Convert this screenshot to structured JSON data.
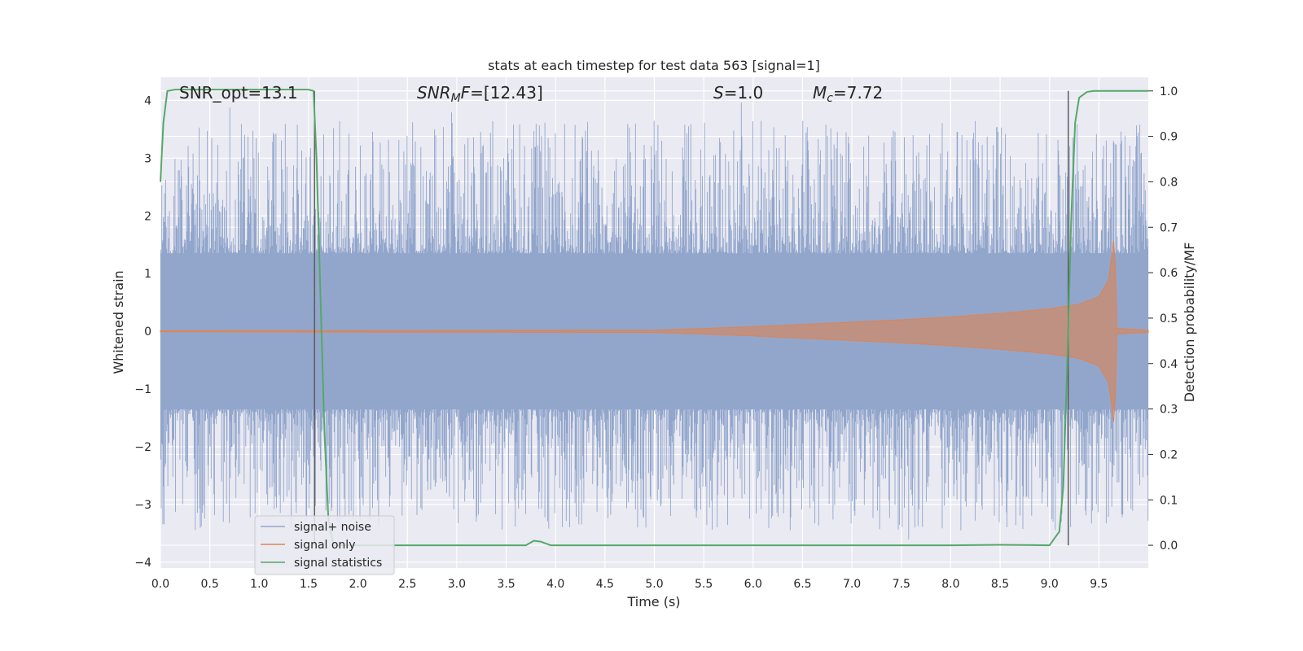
{
  "chart_data": {
    "type": "line",
    "title": "stats at each timestep for test data 563 [signal=1]",
    "xlabel": "Time (s)",
    "ylabel": "Whitened strain",
    "ylabel_right": "Detection probability/MF",
    "xlim": [
      0.0,
      10.0
    ],
    "ylim": [
      -4.1,
      4.4
    ],
    "ylim_right": [
      -0.05,
      1.03
    ],
    "x_ticks": [
      "0.0",
      "0.5",
      "1.0",
      "1.5",
      "2.0",
      "2.5",
      "3.0",
      "3.5",
      "4.0",
      "4.5",
      "5.0",
      "5.5",
      "6.0",
      "6.5",
      "7.0",
      "7.5",
      "8.0",
      "8.5",
      "9.0",
      "9.5"
    ],
    "y_ticks": [
      "−4",
      "−3",
      "−2",
      "−1",
      "0",
      "1",
      "2",
      "3",
      "4"
    ],
    "y_ticks_right": [
      "0.0",
      "0.1",
      "0.2",
      "0.3",
      "0.4",
      "0.5",
      "0.6",
      "0.7",
      "0.8",
      "0.9",
      "1.0"
    ],
    "grid": true,
    "legend_position": "lower-left",
    "annotations": {
      "snr_opt": "SNR_opt=13.1",
      "snr_mf_sym": "SNR",
      "snr_mf_sub": "M",
      "snr_mf_rest": "F=[12.43]",
      "s_sym": "S",
      "s_rest": "=1.0",
      "mc_sym": "M",
      "mc_sub": "c",
      "mc_rest": "=7.72"
    },
    "vertical_markers": [
      1.56,
      9.19
    ],
    "series": [
      {
        "name": "signal+ noise",
        "color": "#92a6cc",
        "description_values": "noise band approx ±1.3 with spikes to about ±3.5",
        "band": [
          -1.35,
          1.35
        ],
        "spike_max": 4.0,
        "spike_min": -3.7
      },
      {
        "name": "signal only",
        "color": "#dd8452",
        "envelope": {
          "x": [
            0.0,
            5.0,
            5.5,
            6.0,
            6.5,
            7.0,
            7.5,
            8.0,
            8.5,
            9.0,
            9.3,
            9.5,
            9.6,
            9.66,
            9.68,
            10.0
          ],
          "amp": [
            0.01,
            0.02,
            0.05,
            0.08,
            0.12,
            0.16,
            0.2,
            0.25,
            0.31,
            0.39,
            0.47,
            0.6,
            0.9,
            1.7,
            0.05,
            0.02
          ]
        }
      },
      {
        "name": "signal statistics",
        "color": "#55a868",
        "x": [
          0.0,
          0.03,
          0.07,
          0.15,
          0.5,
          1.0,
          1.5,
          1.55,
          1.58,
          1.62,
          1.66,
          1.7,
          1.75,
          2.0,
          3.0,
          3.7,
          3.78,
          3.85,
          3.95,
          4.5,
          6.0,
          8.0,
          8.5,
          9.0,
          9.1,
          9.14,
          9.18,
          9.22,
          9.26,
          9.3,
          9.38,
          9.45,
          9.55,
          10.0
        ],
        "y": [
          0.8,
          0.93,
          1.0,
          1.003,
          1.003,
          1.003,
          1.003,
          1.0,
          0.85,
          0.55,
          0.25,
          0.06,
          0.0,
          0.0,
          0.0,
          0.0,
          0.01,
          0.008,
          0.0,
          0.0,
          0.0,
          0.0,
          0.001,
          0.0,
          0.03,
          0.13,
          0.4,
          0.72,
          0.93,
          0.985,
          0.998,
          1.0,
          1.0,
          1.0
        ]
      }
    ]
  }
}
